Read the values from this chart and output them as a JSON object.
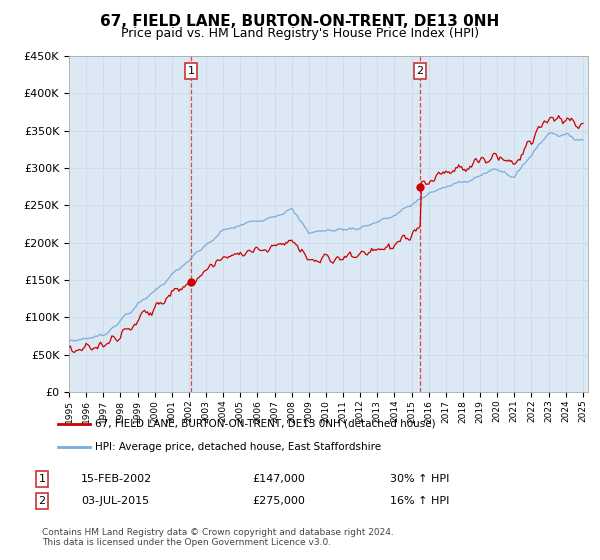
{
  "title": "67, FIELD LANE, BURTON-ON-TRENT, DE13 0NH",
  "subtitle": "Price paid vs. HM Land Registry's House Price Index (HPI)",
  "background_color": "#dce9f5",
  "fig_bg_color": "#ffffff",
  "ylim": [
    0,
    450000
  ],
  "sale1_date_num": 2002.12,
  "sale1_price": 147000,
  "sale1_label": "15-FEB-2002",
  "sale1_amount": "£147,000",
  "sale1_hpi": "30% ↑ HPI",
  "sale2_date_num": 2015.5,
  "sale2_price": 275000,
  "sale2_label": "03-JUL-2015",
  "sale2_amount": "£275,000",
  "sale2_hpi": "16% ↑ HPI",
  "red_line_label": "67, FIELD LANE, BURTON-ON-TRENT, DE13 0NH (detached house)",
  "blue_line_label": "HPI: Average price, detached house, East Staffordshire",
  "footer": "Contains HM Land Registry data © Crown copyright and database right 2024.\nThis data is licensed under the Open Government Licence v3.0.",
  "red_color": "#cc0000",
  "blue_color": "#7aaddb",
  "dashed_color": "#cc3333"
}
